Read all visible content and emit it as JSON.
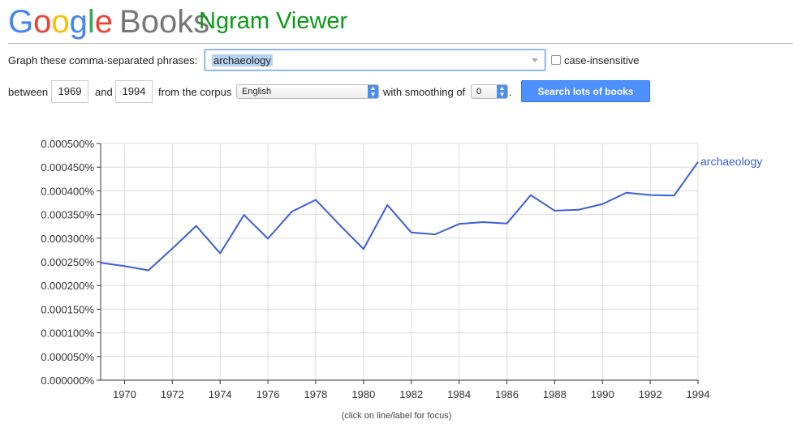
{
  "header": {
    "logo_letters": [
      "G",
      "o",
      "o",
      "g",
      "l",
      "e"
    ],
    "logo_suffix": "Books",
    "title": "Ngram Viewer"
  },
  "form": {
    "phrases_label": "Graph these comma-separated phrases:",
    "phrases_value": "archaeology",
    "case_insensitive_label": "case-insensitive",
    "case_insensitive_checked": false,
    "between_label": "between",
    "start_year": "1969",
    "and_label": "and",
    "end_year": "1994",
    "corpus_label": "from the corpus",
    "corpus_value": "English",
    "smoothing_label": "with smoothing of",
    "smoothing_value": "0",
    "period": ".",
    "search_button": "Search lots of books"
  },
  "chart_data": {
    "type": "line",
    "x": [
      1969,
      1970,
      1971,
      1972,
      1973,
      1974,
      1975,
      1976,
      1977,
      1978,
      1979,
      1980,
      1981,
      1982,
      1983,
      1984,
      1985,
      1986,
      1987,
      1988,
      1989,
      1990,
      1991,
      1992,
      1993,
      1994
    ],
    "series": [
      {
        "name": "archaeology",
        "color": "#3b5fd8",
        "values": [
          0.000248,
          0.000241,
          0.000232,
          0.000278,
          0.000326,
          0.000268,
          0.000349,
          0.000299,
          0.000356,
          0.000381,
          0.000328,
          0.000277,
          0.00037,
          0.000312,
          0.000308,
          0.00033,
          0.000334,
          0.000331,
          0.000391,
          0.000358,
          0.00036,
          0.000372,
          0.000396,
          0.000391,
          0.00039,
          0.000461
        ]
      }
    ],
    "ylim": [
      0,
      0.0005
    ],
    "xlim": [
      1969,
      1994
    ],
    "y_ticks": [
      "0.000000%",
      "0.000050%",
      "0.000100%",
      "0.000150%",
      "0.000200%",
      "0.000250%",
      "0.000300%",
      "0.000350%",
      "0.000400%",
      "0.000450%",
      "0.000500%"
    ],
    "x_ticks": [
      "1970",
      "1972",
      "1974",
      "1976",
      "1978",
      "1980",
      "1982",
      "1984",
      "1986",
      "1988",
      "1990",
      "1992",
      "1994"
    ],
    "grid": true,
    "footnote": "(click on line/label for focus)"
  }
}
